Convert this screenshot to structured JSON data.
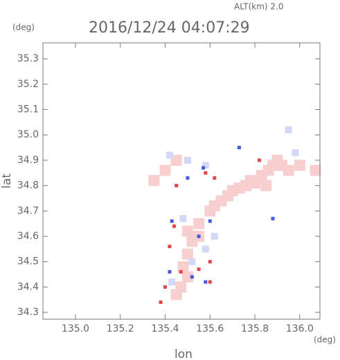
{
  "chart_data": {
    "type": "scatter",
    "title": "2016/12/24 04:07:29",
    "altitude_label": "ALT(km) 2.0",
    "y_unit": "(deg)",
    "x_unit": "(deg)",
    "x_label": "lon",
    "y_label": "lat",
    "xlim": [
      134.855,
      136.09
    ],
    "ylim": [
      34.273,
      35.363
    ],
    "xticks": [
      {
        "value": 135.0,
        "label": "135.0"
      },
      135.2,
      135.4,
      135.6,
      135.8,
      {
        "value": 136.0,
        "label": "136.0"
      }
    ],
    "yticks": [
      {
        "value": 34.3,
        "label": "34.3"
      },
      34.4,
      34.5,
      34.6,
      34.7,
      34.8,
      34.9,
      {
        "value": 35.0,
        "label": "35.0"
      },
      35.1,
      35.2,
      35.3
    ],
    "series": [
      {
        "color": "#f7cfcf",
        "size": 16,
        "x": [
          135.62,
          135.65,
          135.68,
          135.7,
          135.73,
          135.76,
          135.78,
          135.8,
          135.83,
          135.86,
          135.88,
          135.9,
          135.92,
          135.95,
          135.85,
          135.6,
          135.55,
          135.5,
          135.52,
          135.5,
          135.48,
          135.5,
          135.47,
          135.45,
          135.55,
          135.4,
          135.45,
          136.07,
          136.0,
          135.35
        ],
        "values": [
          34.72,
          34.74,
          34.76,
          34.78,
          34.79,
          34.8,
          34.82,
          34.81,
          34.84,
          34.86,
          34.88,
          34.9,
          34.88,
          34.86,
          34.8,
          34.7,
          34.65,
          34.62,
          34.58,
          34.53,
          34.48,
          34.44,
          34.4,
          34.37,
          34.6,
          34.86,
          34.9,
          34.86,
          34.88,
          34.82
        ]
      },
      {
        "color": "#d2d8f6",
        "size": 10,
        "x": [
          135.42,
          135.5,
          135.58,
          135.48,
          135.52,
          135.58,
          135.62,
          135.43,
          135.95,
          135.98
        ],
        "values": [
          34.92,
          34.9,
          34.88,
          34.67,
          34.5,
          34.55,
          34.6,
          34.42,
          35.02,
          34.93
        ]
      },
      {
        "color": "#e04848",
        "size": 5,
        "x": [
          135.58,
          135.62,
          135.45,
          135.44,
          135.47,
          135.55,
          135.6,
          135.4,
          135.38,
          135.6,
          135.42,
          135.82
        ],
        "values": [
          34.85,
          34.83,
          34.8,
          34.64,
          34.46,
          34.47,
          34.5,
          34.4,
          34.34,
          34.42,
          34.56,
          34.9
        ]
      },
      {
        "color": "#4858e0",
        "size": 5,
        "x": [
          135.57,
          135.5,
          135.43,
          135.52,
          135.58,
          135.42,
          135.6,
          135.88,
          135.73,
          135.55
        ],
        "values": [
          34.87,
          34.83,
          34.66,
          34.44,
          34.42,
          34.46,
          34.66,
          34.67,
          34.95,
          34.6
        ]
      }
    ]
  }
}
